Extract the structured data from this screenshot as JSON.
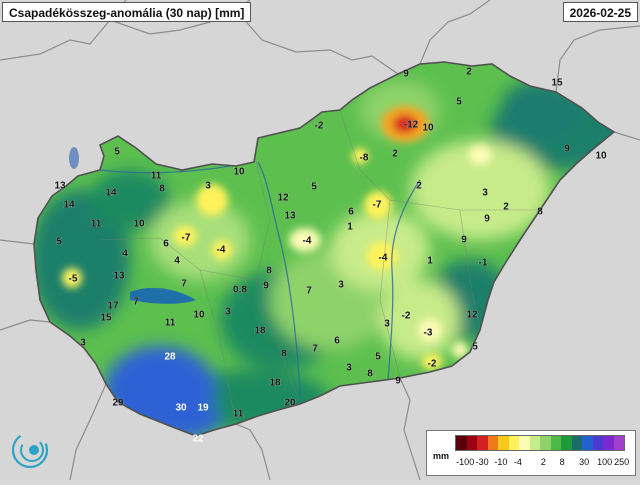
{
  "header": {
    "title": "Csapadékösszeg-anomália (30 nap) [mm]",
    "date": "2026-02-25"
  },
  "legend": {
    "unit": "mm",
    "colors": [
      "#5a0008",
      "#9a0014",
      "#d42020",
      "#f07a18",
      "#f8c81a",
      "#fff35c",
      "#fbfbb4",
      "#c8eb8a",
      "#8ed26a",
      "#4fb84a",
      "#1e9a3a",
      "#1b6b68",
      "#2060d0",
      "#4a3ad0",
      "#7a2ad0",
      "#a040c8"
    ],
    "ticks": [
      "-100",
      "-30",
      "-10",
      "-4",
      "2",
      "8",
      "30",
      "100",
      "250"
    ]
  },
  "map_labels": [
    {
      "v": "9"
    },
    {
      "v": "2"
    },
    {
      "v": "15"
    },
    {
      "v": "5"
    },
    {
      "v": "-12"
    },
    {
      "v": "10"
    },
    {
      "v": "-2"
    },
    {
      "v": "-8"
    },
    {
      "v": "2"
    },
    {
      "v": "9"
    },
    {
      "v": "10"
    },
    {
      "v": "5"
    },
    {
      "v": "11"
    },
    {
      "v": "10"
    },
    {
      "v": "13"
    },
    {
      "v": "14"
    },
    {
      "v": "8"
    },
    {
      "v": "3"
    },
    {
      "v": "12"
    },
    {
      "v": "5"
    },
    {
      "v": "2"
    },
    {
      "v": "3"
    },
    {
      "v": "14"
    },
    {
      "v": "-7"
    },
    {
      "v": "13"
    },
    {
      "v": "6"
    },
    {
      "v": "2"
    },
    {
      "v": "9"
    },
    {
      "v": "8"
    },
    {
      "v": "11"
    },
    {
      "v": "10"
    },
    {
      "v": "-7"
    },
    {
      "v": "-4"
    },
    {
      "v": "1"
    },
    {
      "v": "9"
    },
    {
      "v": "5"
    },
    {
      "v": "6"
    },
    {
      "v": "-4"
    },
    {
      "v": "-4"
    },
    {
      "v": "1"
    },
    {
      "v": "-1"
    },
    {
      "v": "4"
    },
    {
      "v": "4"
    },
    {
      "v": "8"
    },
    {
      "v": "-5"
    },
    {
      "v": "13"
    },
    {
      "v": "7"
    },
    {
      "v": "9"
    },
    {
      "v": "0.8"
    },
    {
      "v": "7"
    },
    {
      "v": "3"
    },
    {
      "v": "17"
    },
    {
      "v": "7"
    },
    {
      "v": "15"
    },
    {
      "v": "11"
    },
    {
      "v": "10"
    },
    {
      "v": "3"
    },
    {
      "v": "-2"
    },
    {
      "v": "12"
    },
    {
      "v": "3"
    },
    {
      "v": "-3"
    },
    {
      "v": "18"
    },
    {
      "v": "3"
    },
    {
      "v": "8"
    },
    {
      "v": "7"
    },
    {
      "v": "6"
    },
    {
      "v": "5"
    },
    {
      "v": "28"
    },
    {
      "v": "3"
    },
    {
      "v": "-2"
    },
    {
      "v": "5"
    },
    {
      "v": "8"
    },
    {
      "v": "9"
    },
    {
      "v": "18"
    },
    {
      "v": "29"
    },
    {
      "v": "30"
    },
    {
      "v": "19"
    },
    {
      "v": "20"
    },
    {
      "v": "11"
    },
    {
      "v": "22"
    }
  ]
}
